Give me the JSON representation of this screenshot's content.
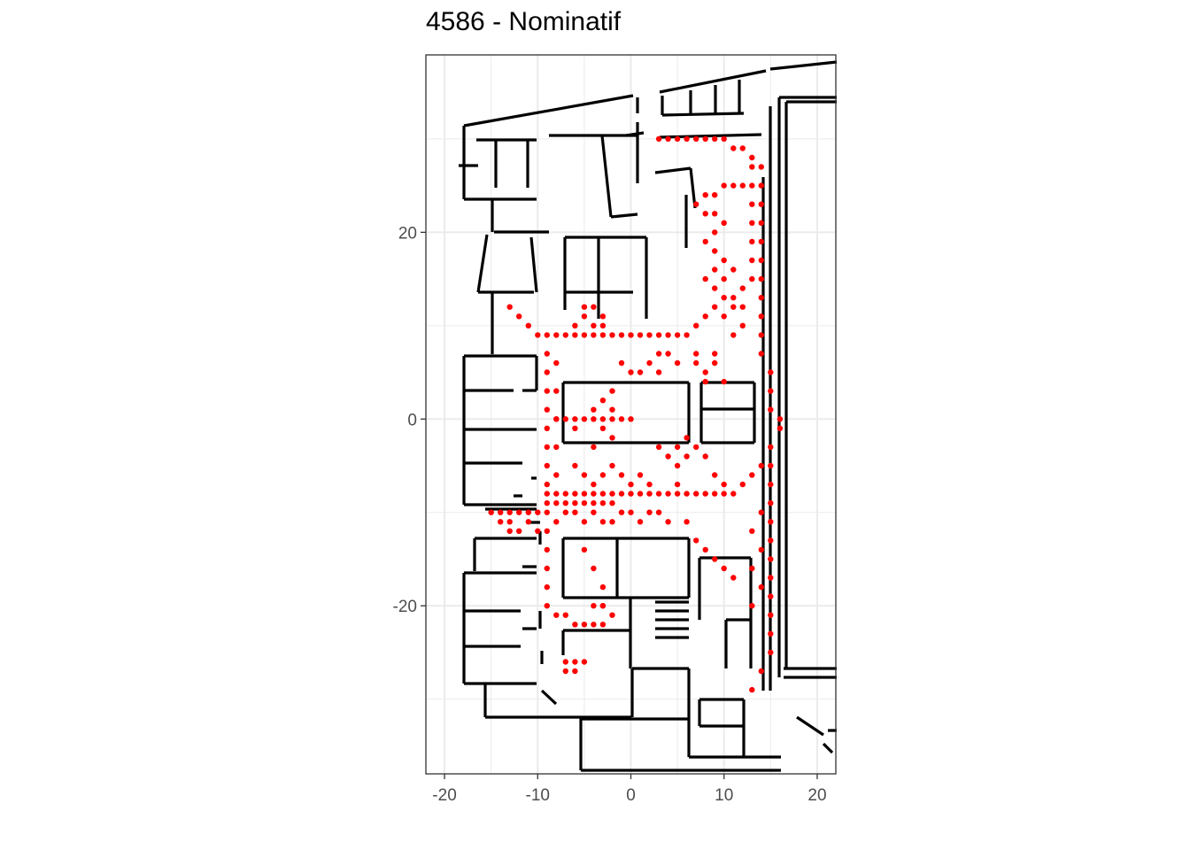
{
  "title": "4586 - Nominatif",
  "colors": {
    "path": "#ff0000",
    "walls": "#000000",
    "grid": "#ebebeb",
    "panel_border": "#333333"
  },
  "chart_data": {
    "type": "scatter",
    "title": "4586 - Nominatif",
    "xlabel": "",
    "ylabel": "",
    "xlim": [
      -22,
      22
    ],
    "ylim": [
      -38,
      39
    ],
    "x_ticks": [
      -20,
      -10,
      0,
      10,
      20
    ],
    "y_ticks": [
      -20,
      0,
      20
    ],
    "x_tick_labels": [
      "-20",
      "-10",
      "0",
      "10",
      "20"
    ],
    "y_tick_labels": [
      "-20",
      "0",
      "20"
    ],
    "grid": true,
    "legend": "none",
    "background_layer": "black floor plan outline (walls) of a building",
    "series": [
      {
        "color": "#ff0000",
        "marker": "point",
        "values": [
          [
            -13,
            12
          ],
          [
            -12,
            11
          ],
          [
            -11,
            10
          ],
          [
            -10,
            9
          ],
          [
            -9,
            9
          ],
          [
            -8,
            9
          ],
          [
            -7,
            9
          ],
          [
            -6,
            9
          ],
          [
            -5,
            9
          ],
          [
            -4,
            9
          ],
          [
            -3,
            9
          ],
          [
            -2,
            9
          ],
          [
            -1,
            9
          ],
          [
            0,
            9
          ],
          [
            1,
            9
          ],
          [
            2,
            9
          ],
          [
            3,
            9
          ],
          [
            4,
            9
          ],
          [
            5,
            9
          ],
          [
            6,
            9
          ],
          [
            7,
            10
          ],
          [
            8,
            11
          ],
          [
            9,
            12
          ],
          [
            10,
            13
          ],
          [
            11,
            13
          ],
          [
            12,
            12
          ],
          [
            -5,
            12
          ],
          [
            -4,
            12
          ],
          [
            -3,
            11
          ],
          [
            -5,
            11
          ],
          [
            -4,
            10
          ],
          [
            -6,
            10
          ],
          [
            -3,
            10
          ],
          [
            -9,
            7
          ],
          [
            -9,
            5
          ],
          [
            -9,
            3
          ],
          [
            -9,
            1
          ],
          [
            -9,
            -1
          ],
          [
            -9,
            -3
          ],
          [
            -9,
            -5
          ],
          [
            -9,
            -7
          ],
          [
            -9,
            -9
          ],
          [
            -8,
            6
          ],
          [
            -8,
            3
          ],
          [
            -8,
            0
          ],
          [
            -8,
            -3
          ],
          [
            -8,
            -6
          ],
          [
            -8,
            0
          ],
          [
            -7,
            0
          ],
          [
            -6,
            0
          ],
          [
            -5,
            0
          ],
          [
            -4,
            0
          ],
          [
            -3,
            0
          ],
          [
            -2,
            0
          ],
          [
            -1,
            0
          ],
          [
            0,
            0
          ],
          [
            -3,
            -1
          ],
          [
            -4,
            1
          ],
          [
            -6,
            -1
          ],
          [
            5,
            -3
          ],
          [
            5,
            -5
          ],
          [
            5,
            -7
          ],
          [
            4,
            -4
          ],
          [
            3,
            -3
          ],
          [
            6,
            -4
          ],
          [
            -9,
            -8
          ],
          [
            -8,
            -8
          ],
          [
            -7,
            -8
          ],
          [
            -6,
            -8
          ],
          [
            -5,
            -8
          ],
          [
            -4,
            -8
          ],
          [
            -3,
            -8
          ],
          [
            -2,
            -8
          ],
          [
            -1,
            -8
          ],
          [
            0,
            -8
          ],
          [
            1,
            -8
          ],
          [
            2,
            -8
          ],
          [
            3,
            -8
          ],
          [
            4,
            -8
          ],
          [
            5,
            -8
          ],
          [
            6,
            -8
          ],
          [
            7,
            -8
          ],
          [
            8,
            -8
          ],
          [
            9,
            -8
          ],
          [
            10,
            -8
          ],
          [
            11,
            -8
          ],
          [
            12,
            -7
          ],
          [
            13,
            -6
          ],
          [
            14,
            -5
          ],
          [
            15,
            -3
          ],
          [
            16,
            -1
          ],
          [
            16,
            0
          ],
          [
            -6,
            -5
          ],
          [
            -5,
            -6
          ],
          [
            -4,
            -7
          ],
          [
            -3,
            -6
          ],
          [
            -2,
            -5
          ],
          [
            -1,
            -6
          ],
          [
            0,
            -7
          ],
          [
            1,
            -6
          ],
          [
            2,
            -7
          ],
          [
            -15,
            -10
          ],
          [
            -14,
            -10
          ],
          [
            -13,
            -10
          ],
          [
            -12,
            -10
          ],
          [
            -11,
            -10
          ],
          [
            -10,
            -10
          ],
          [
            -14,
            -11
          ],
          [
            -13,
            -12
          ],
          [
            -12,
            -12
          ],
          [
            -11,
            -11
          ],
          [
            -9,
            -10
          ],
          [
            -8,
            -11
          ],
          [
            -7,
            -10
          ],
          [
            -6,
            -10
          ],
          [
            -5,
            -11
          ],
          [
            -4,
            -10
          ],
          [
            -3,
            -11
          ],
          [
            -2,
            -11
          ],
          [
            -1,
            -10
          ],
          [
            0,
            -10
          ],
          [
            1,
            -11
          ],
          [
            2,
            -10
          ],
          [
            3,
            -10
          ],
          [
            4,
            -11
          ],
          [
            6,
            -11
          ],
          [
            7,
            -13
          ],
          [
            8,
            -14
          ],
          [
            9,
            -15
          ],
          [
            10,
            -16
          ],
          [
            11,
            -17
          ],
          [
            -9,
            -12
          ],
          [
            -9,
            -14
          ],
          [
            -9,
            -16
          ],
          [
            -9,
            -18
          ],
          [
            -9,
            -20
          ],
          [
            -8,
            -21
          ],
          [
            -7,
            -21
          ],
          [
            -6,
            -22
          ],
          [
            -5,
            -22
          ],
          [
            -4,
            -22
          ],
          [
            -3,
            -22
          ],
          [
            -2,
            -21
          ],
          [
            -3,
            -20
          ],
          [
            -4,
            -20
          ],
          [
            -5,
            -14
          ],
          [
            -4,
            -16
          ],
          [
            -3,
            -18
          ],
          [
            -3,
            -20
          ],
          [
            -7,
            -26
          ],
          [
            -6,
            -26
          ],
          [
            -6,
            -27
          ],
          [
            -7,
            -27
          ],
          [
            -5,
            -26
          ],
          [
            12,
            25
          ],
          [
            11,
            25
          ],
          [
            10,
            25
          ],
          [
            9,
            24
          ],
          [
            8,
            24
          ],
          [
            7,
            23
          ],
          [
            8,
            22
          ],
          [
            9,
            22
          ],
          [
            10,
            21
          ],
          [
            9,
            20
          ],
          [
            8,
            19
          ],
          [
            9,
            18
          ],
          [
            10,
            17
          ],
          [
            9,
            16
          ],
          [
            8,
            15
          ],
          [
            9,
            14
          ],
          [
            10,
            15
          ],
          [
            11,
            16
          ],
          [
            12,
            14
          ],
          [
            11,
            12
          ],
          [
            10,
            11
          ],
          [
            12,
            10
          ],
          [
            11,
            9
          ],
          [
            3,
            30
          ],
          [
            4,
            30
          ],
          [
            5,
            30
          ],
          [
            6,
            30
          ],
          [
            7,
            30
          ],
          [
            8,
            30
          ],
          [
            9,
            30
          ],
          [
            10,
            30
          ],
          [
            11,
            29
          ],
          [
            12,
            29
          ],
          [
            13,
            28
          ],
          [
            14,
            27
          ],
          [
            14,
            25
          ],
          [
            14,
            23
          ],
          [
            14,
            21
          ],
          [
            14,
            19
          ],
          [
            14,
            17
          ],
          [
            14,
            15
          ],
          [
            14,
            13
          ],
          [
            14,
            11
          ],
          [
            14,
            9
          ],
          [
            14,
            7
          ],
          [
            15,
            5
          ],
          [
            15,
            3
          ],
          [
            15,
            1
          ],
          [
            13,
            27
          ],
          [
            13,
            25
          ],
          [
            13,
            23
          ],
          [
            13,
            21
          ],
          [
            13,
            19
          ],
          [
            13,
            17
          ],
          [
            13,
            15
          ],
          [
            15,
            -5
          ],
          [
            15,
            -7
          ],
          [
            15,
            -9
          ],
          [
            15,
            -11
          ],
          [
            15,
            -13
          ],
          [
            15,
            -15
          ],
          [
            15,
            -17
          ],
          [
            15,
            -19
          ],
          [
            15,
            -21
          ],
          [
            15,
            -23
          ],
          [
            15,
            -25
          ],
          [
            14,
            -27
          ],
          [
            13,
            -29
          ],
          [
            14,
            -10
          ],
          [
            13,
            -12
          ],
          [
            14,
            -14
          ],
          [
            13,
            -16
          ],
          [
            14,
            -18
          ],
          [
            13,
            -20
          ],
          [
            7,
            6
          ],
          [
            8,
            5
          ],
          [
            9,
            6
          ],
          [
            8,
            4
          ],
          [
            7,
            7
          ],
          [
            10,
            4
          ],
          [
            9,
            7
          ],
          [
            1,
            5
          ],
          [
            2,
            6
          ],
          [
            3,
            5
          ],
          [
            4,
            7
          ],
          [
            5,
            6
          ],
          [
            3,
            7
          ],
          [
            6,
            -2
          ],
          [
            7,
            -3
          ],
          [
            8,
            -4
          ],
          [
            9,
            -6
          ],
          [
            10,
            -7
          ],
          [
            -2,
            1
          ],
          [
            -3,
            2
          ],
          [
            0,
            5
          ],
          [
            -2,
            3
          ],
          [
            -1,
            6
          ],
          [
            -4,
            -3
          ],
          [
            -2,
            -2
          ],
          [
            -13,
            -11
          ],
          [
            -10,
            -12
          ],
          [
            -8,
            -9
          ],
          [
            -7,
            -9
          ],
          [
            -6,
            -9
          ],
          [
            -5,
            -9
          ],
          [
            -4,
            -9
          ],
          [
            -3,
            -9
          ],
          [
            -2,
            -9
          ]
        ]
      }
    ]
  }
}
